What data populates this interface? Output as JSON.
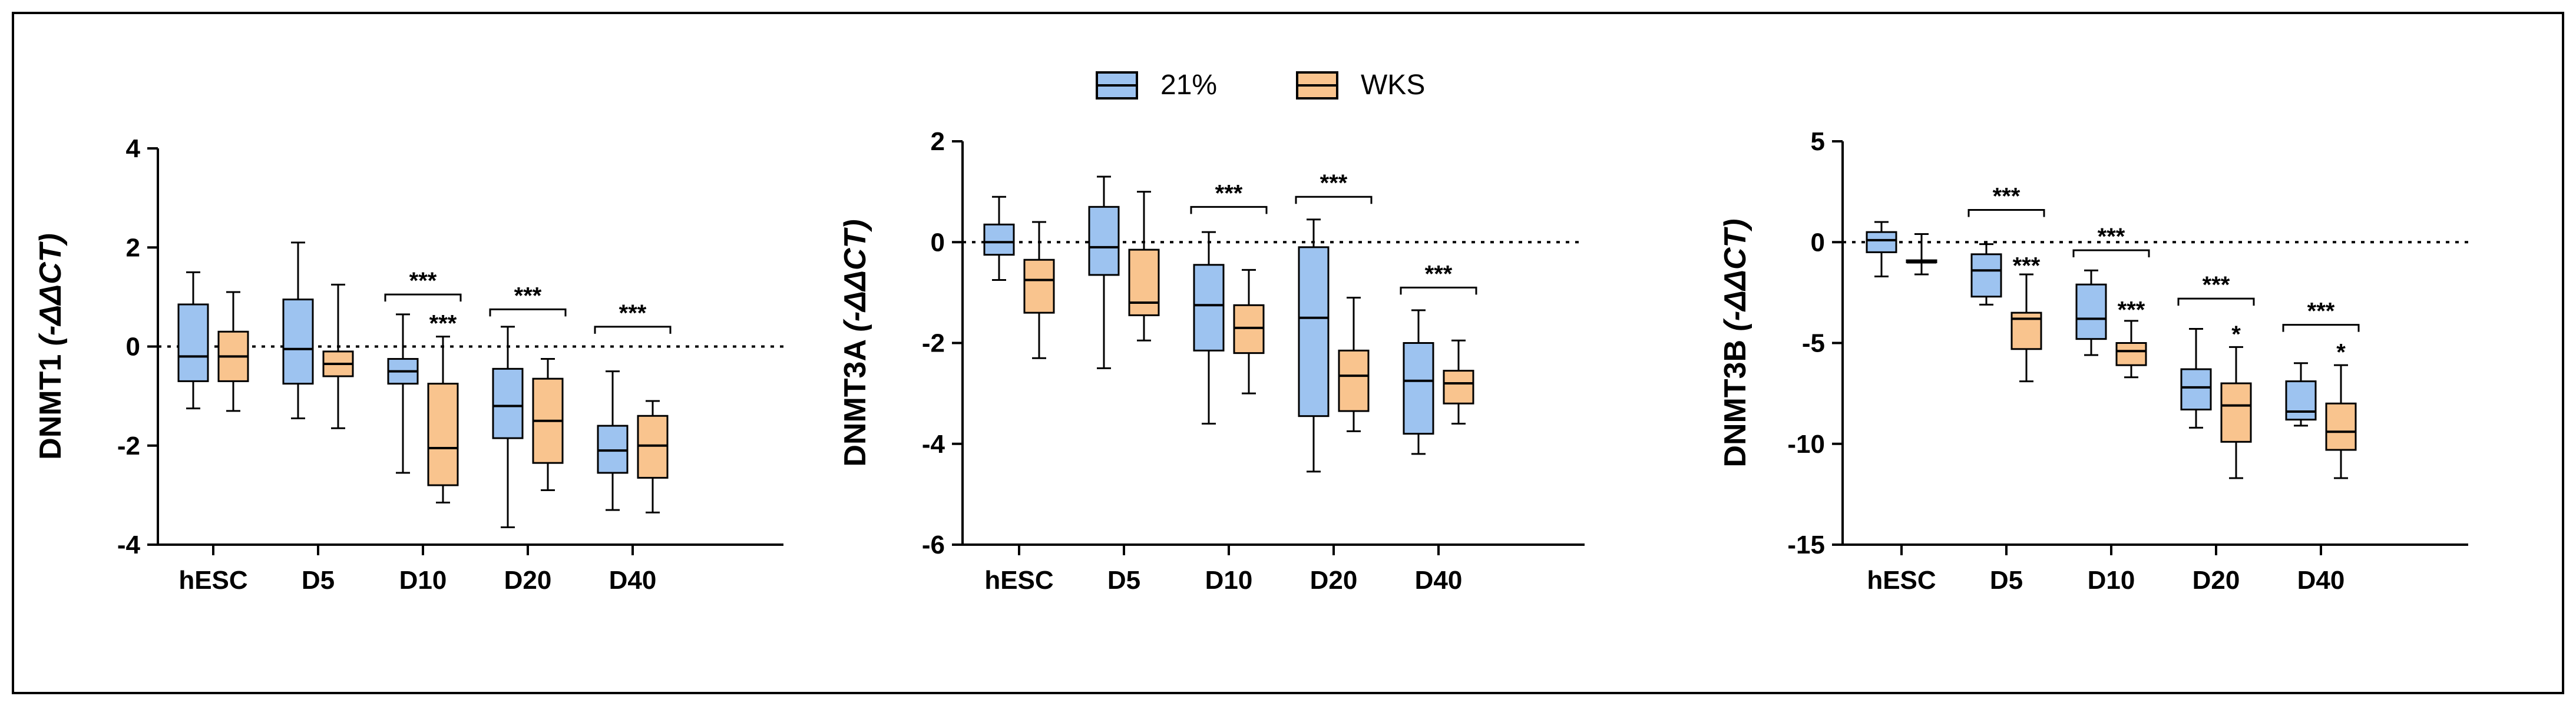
{
  "legend": [
    {
      "label": "21%",
      "color": "#9dc3f0"
    },
    {
      "label": "WKS",
      "color": "#f9c48e"
    }
  ],
  "chart_data": [
    {
      "type": "box",
      "ylabel_main": "DNMT1",
      "ylabel_sub": "(-ΔΔCT)",
      "ylim": [
        -4,
        4
      ],
      "yticks": [
        4,
        2,
        0,
        -2,
        -4
      ],
      "yticks_labels": [
        "4",
        "2",
        "0",
        "-2",
        "-4"
      ],
      "categories": [
        "hESC",
        "D5",
        "D10",
        "D20",
        "D40"
      ],
      "series": [
        {
          "name": "21%",
          "color": "#9dc3f0",
          "boxes": [
            {
              "min": -1.25,
              "q1": -0.7,
              "median": -0.2,
              "q3": 0.85,
              "max": 1.5
            },
            {
              "min": -1.45,
              "q1": -0.75,
              "median": -0.05,
              "q3": 0.95,
              "max": 2.1
            },
            {
              "min": -2.55,
              "q1": -0.75,
              "median": -0.5,
              "q3": -0.25,
              "max": 0.65
            },
            {
              "min": -3.65,
              "q1": -1.85,
              "median": -1.2,
              "q3": -0.45,
              "max": 0.4
            },
            {
              "min": -3.3,
              "q1": -2.55,
              "median": -2.1,
              "q3": -1.6,
              "max": -0.5
            }
          ]
        },
        {
          "name": "WKS",
          "color": "#f9c48e",
          "boxes": [
            {
              "min": -1.3,
              "q1": -0.7,
              "median": -0.2,
              "q3": 0.3,
              "max": 1.1
            },
            {
              "min": -1.65,
              "q1": -0.6,
              "median": -0.35,
              "q3": -0.1,
              "max": 1.25
            },
            {
              "min": -3.15,
              "q1": -2.8,
              "median": -2.05,
              "q3": -0.75,
              "max": 0.2
            },
            {
              "min": -2.9,
              "q1": -2.35,
              "median": -1.5,
              "q3": -0.65,
              "max": -0.25
            },
            {
              "min": -3.35,
              "q1": -2.65,
              "median": -2.0,
              "q3": -1.4,
              "max": -1.1
            }
          ]
        }
      ],
      "brackets": [
        {
          "category": 2,
          "label": "***",
          "y": 1.05
        },
        {
          "category": 3,
          "label": "***",
          "y": 0.75
        },
        {
          "category": 4,
          "label": "***",
          "y": 0.4
        }
      ],
      "box_labels": [
        {
          "category": 2,
          "series": 1,
          "label": "***",
          "y": 0.45
        }
      ]
    },
    {
      "type": "box",
      "ylabel_main": "DNMT3A",
      "ylabel_sub": "(-ΔΔCT)",
      "ylim": [
        -6,
        2
      ],
      "yticks": [
        2,
        0,
        -2,
        -4,
        -6
      ],
      "yticks_labels": [
        "2",
        "0",
        "-2",
        "-4",
        "-6"
      ],
      "categories": [
        "hESC",
        "D5",
        "D10",
        "D20",
        "D40"
      ],
      "series": [
        {
          "name": "21%",
          "color": "#9dc3f0",
          "boxes": [
            {
              "min": -0.75,
              "q1": -0.25,
              "median": 0.0,
              "q3": 0.35,
              "max": 0.9
            },
            {
              "min": -2.5,
              "q1": -0.65,
              "median": -0.1,
              "q3": 0.7,
              "max": 1.3
            },
            {
              "min": -3.6,
              "q1": -2.15,
              "median": -1.25,
              "q3": -0.45,
              "max": 0.2
            },
            {
              "min": -4.55,
              "q1": -3.45,
              "median": -1.5,
              "q3": -0.1,
              "max": 0.45
            },
            {
              "min": -4.2,
              "q1": -3.8,
              "median": -2.75,
              "q3": -2.0,
              "max": -1.35
            }
          ]
        },
        {
          "name": "WKS",
          "color": "#f9c48e",
          "boxes": [
            {
              "min": -2.3,
              "q1": -1.4,
              "median": -0.75,
              "q3": -0.35,
              "max": 0.4
            },
            {
              "min": -1.95,
              "q1": -1.45,
              "median": -1.2,
              "q3": -0.15,
              "max": 1.0
            },
            {
              "min": -3.0,
              "q1": -2.2,
              "median": -1.7,
              "q3": -1.25,
              "max": -0.55
            },
            {
              "min": -3.75,
              "q1": -3.35,
              "median": -2.65,
              "q3": -2.15,
              "max": -1.1
            },
            {
              "min": -3.6,
              "q1": -3.2,
              "median": -2.8,
              "q3": -2.55,
              "max": -1.95
            }
          ]
        }
      ],
      "brackets": [
        {
          "category": 2,
          "label": "***",
          "y": 0.7
        },
        {
          "category": 3,
          "label": "***",
          "y": 0.9
        },
        {
          "category": 4,
          "label": "***",
          "y": -0.9
        }
      ],
      "box_labels": []
    },
    {
      "type": "box",
      "ylabel_main": "DNMT3B",
      "ylabel_sub": "(-ΔΔCT)",
      "ylim": [
        -15,
        5
      ],
      "yticks": [
        5,
        0,
        -5,
        -10,
        -15
      ],
      "yticks_labels": [
        "5",
        "0",
        "-5",
        "-10",
        "-15"
      ],
      "categories": [
        "hESC",
        "D5",
        "D10",
        "D20",
        "D40"
      ],
      "series": [
        {
          "name": "21%",
          "color": "#9dc3f0",
          "boxes": [
            {
              "min": -1.7,
              "q1": -0.5,
              "median": 0.1,
              "q3": 0.5,
              "max": 1.0
            },
            {
              "min": -3.1,
              "q1": -2.7,
              "median": -1.4,
              "q3": -0.6,
              "max": -0.1
            },
            {
              "min": -5.6,
              "q1": -4.8,
              "median": -3.8,
              "q3": -2.1,
              "max": -1.4
            },
            {
              "min": -9.2,
              "q1": -8.3,
              "median": -7.2,
              "q3": -6.3,
              "max": -4.3
            },
            {
              "min": -9.1,
              "q1": -8.8,
              "median": -8.4,
              "q3": -6.9,
              "max": -6.0
            }
          ]
        },
        {
          "name": "WKS",
          "color": "#f9c48e",
          "boxes": [
            {
              "min": -1.6,
              "q1": -1.0,
              "median": -1.0,
              "q3": -0.9,
              "max": 0.4
            },
            {
              "min": -6.9,
              "q1": -5.3,
              "median": -3.8,
              "q3": -3.5,
              "max": -1.6
            },
            {
              "min": -6.7,
              "q1": -6.1,
              "median": -5.4,
              "q3": -5.0,
              "max": -3.9
            },
            {
              "min": -11.7,
              "q1": -9.9,
              "median": -8.1,
              "q3": -7.0,
              "max": -5.2
            },
            {
              "min": -11.7,
              "q1": -10.3,
              "median": -9.4,
              "q3": -8.0,
              "max": -6.1
            }
          ]
        }
      ],
      "brackets": [
        {
          "category": 1,
          "label": "***",
          "y": 1.6
        },
        {
          "category": 2,
          "label": "***",
          "y": -0.4
        },
        {
          "category": 3,
          "label": "***",
          "y": -2.8
        },
        {
          "category": 4,
          "label": "***",
          "y": -4.1
        }
      ],
      "box_labels": [
        {
          "category": 1,
          "series": 1,
          "label": "***",
          "y": -1.2
        },
        {
          "category": 2,
          "series": 1,
          "label": "***",
          "y": -3.4
        },
        {
          "category": 3,
          "series": 1,
          "label": "*",
          "y": -4.6
        },
        {
          "category": 4,
          "series": 1,
          "label": "*",
          "y": -5.5
        }
      ]
    }
  ]
}
